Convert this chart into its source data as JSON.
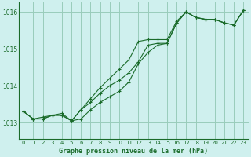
{
  "title": "Graphe pression niveau de la mer (hPa)",
  "background_color": "#cff0ee",
  "grid_color": "#99ccbb",
  "line_color": "#1a6b2a",
  "marker_color": "#1a6b2a",
  "xlim": [
    -0.5,
    23.5
  ],
  "ylim": [
    1012.55,
    1016.25
  ],
  "yticks": [
    1013,
    1014,
    1015,
    1016
  ],
  "xticks": [
    0,
    1,
    2,
    3,
    4,
    5,
    6,
    7,
    8,
    9,
    10,
    11,
    12,
    13,
    14,
    15,
    16,
    17,
    18,
    19,
    20,
    21,
    22,
    23
  ],
  "line1": [
    1013.3,
    1013.1,
    1013.15,
    1013.2,
    1013.25,
    1013.05,
    1013.1,
    1013.35,
    1013.55,
    1013.7,
    1013.85,
    1014.1,
    1014.6,
    1014.9,
    1015.1,
    1015.15,
    1015.7,
    1016.0,
    1015.85,
    1015.8,
    1015.8,
    1015.7,
    1015.65,
    1016.05
  ],
  "line2": [
    1013.3,
    1013.1,
    1013.1,
    1013.2,
    1013.2,
    1013.05,
    1013.35,
    1013.55,
    1013.8,
    1014.0,
    1014.15,
    1014.35,
    1014.65,
    1015.1,
    1015.15,
    1015.15,
    1015.7,
    1016.0,
    1015.85,
    1015.8,
    1015.8,
    1015.7,
    1015.65,
    1016.05
  ],
  "line3": [
    1013.3,
    1013.1,
    1013.1,
    1013.2,
    1013.2,
    1013.05,
    1013.35,
    1013.65,
    1013.95,
    1014.2,
    1014.45,
    1014.7,
    1015.2,
    1015.25,
    1015.25,
    1015.25,
    1015.75,
    1016.0,
    1015.85,
    1015.8,
    1015.8,
    1015.7,
    1015.65,
    1016.05
  ]
}
